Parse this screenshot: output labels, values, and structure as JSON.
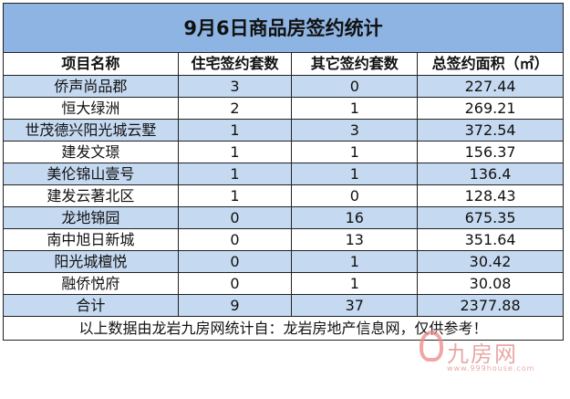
{
  "title": "9月6日商品房签约统计",
  "headers": [
    "项目名称",
    "住宅签约套数",
    "其它签约套数",
    "总签约面积（㎡）"
  ],
  "rows": [
    [
      "侨声尚品郡",
      "3",
      "0",
      "227.44"
    ],
    [
      "恒大绿洲",
      "2",
      "1",
      "269.21"
    ],
    [
      "世茂德兴阳光城云墅",
      "1",
      "3",
      "372.54"
    ],
    [
      "建发文璟",
      "1",
      "1",
      "156.37"
    ],
    [
      "美伦锦山壹号",
      "1",
      "1",
      "136.4"
    ],
    [
      "建发云著北区",
      "1",
      "0",
      "128.43"
    ],
    [
      "龙地锦园",
      "0",
      "16",
      "675.35"
    ],
    [
      "南中旭日新城",
      "0",
      "13",
      "351.64"
    ],
    [
      "阳光城檀悦",
      "0",
      "1",
      "30.42"
    ],
    [
      "融侨悦府",
      "0",
      "1",
      "30.08"
    ]
  ],
  "total": [
    "合计",
    "9",
    "37",
    "2377.88"
  ],
  "footer": "以上数据由龙岩九房网统计自：龙岩房地产信息网，仅供参考！",
  "watermark": {
    "name": "九房网",
    "url": "www.999house.com"
  },
  "colors": {
    "title_bg": "#8db4e2",
    "row_alt": "#c5d9f1"
  }
}
